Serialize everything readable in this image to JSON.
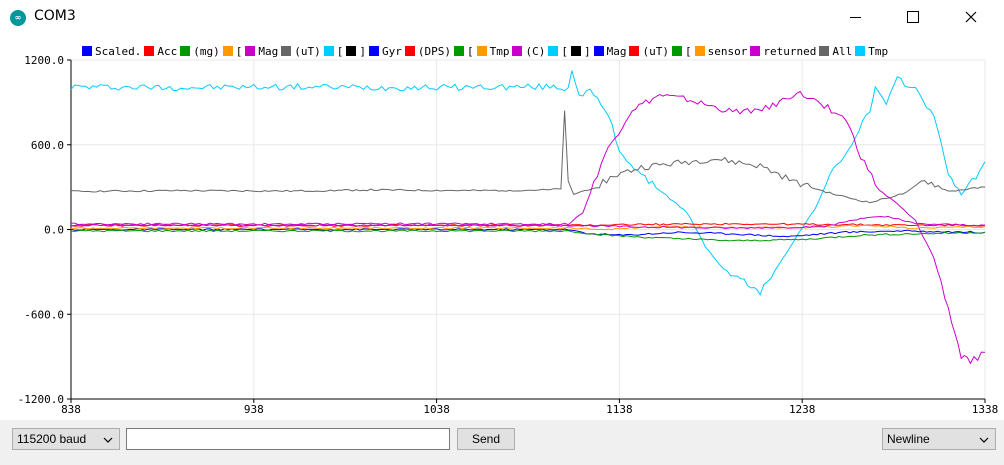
{
  "window": {
    "title": "COM3",
    "app_icon_glyph": "∞",
    "icon": "arduino-infinity-icon"
  },
  "controls": {
    "minimize": "minimize-icon",
    "maximize": "maximize-icon",
    "close": "close-icon"
  },
  "legend": [
    {
      "label": "Scaled.",
      "color": "#0000ff"
    },
    {
      "label": "Acc",
      "color": "#ff0000"
    },
    {
      "label": "(mg)",
      "color": "#009900"
    },
    {
      "label": "[",
      "color": "#ff9900"
    },
    {
      "label": "Mag",
      "color": "#cc00cc"
    },
    {
      "label": "(uT)",
      "color": "#666666"
    },
    {
      "label": "[",
      "color": "#00ccff"
    },
    {
      "label": "]",
      "color": "#000000"
    },
    {
      "label": "Gyr",
      "color": "#0000ff"
    },
    {
      "label": "(DPS)",
      "color": "#ff0000"
    },
    {
      "label": "[",
      "color": "#009900"
    },
    {
      "label": "Tmp",
      "color": "#ff9900"
    },
    {
      "label": "(C)",
      "color": "#cc00cc"
    },
    {
      "label": "[",
      "color": "#00ccff"
    },
    {
      "label": "]",
      "color": "#000000"
    },
    {
      "label": "Mag",
      "color": "#0000ff"
    },
    {
      "label": "(uT)",
      "color": "#ff0000"
    },
    {
      "label": "[",
      "color": "#009900"
    },
    {
      "label": "sensor",
      "color": "#ff9900"
    },
    {
      "label": "returned",
      "color": "#cc00cc"
    },
    {
      "label": "All",
      "color": "#666666"
    },
    {
      "label": "Tmp",
      "color": "#00ccff"
    }
  ],
  "chart_data": {
    "type": "line",
    "title": "",
    "xlabel": "",
    "ylabel": "",
    "xlim": [
      838,
      1338
    ],
    "ylim": [
      -1200,
      1200
    ],
    "x_ticks": [
      "838",
      "938",
      "1038",
      "1138",
      "1238",
      "1338"
    ],
    "y_ticks": [
      "1200.0",
      "600.0",
      "0.0",
      "-600.0",
      "-1200.0"
    ],
    "grid": true,
    "legend_position": "top",
    "series": [
      {
        "name": "[",
        "color": "#00ccff",
        "points": [
          [
            838,
            1010
          ],
          [
            900,
            1005
          ],
          [
            960,
            1010
          ],
          [
            1010,
            1005
          ],
          [
            1100,
            1010
          ],
          [
            1110,
            1000
          ],
          [
            1112,
            1130
          ],
          [
            1116,
            960
          ],
          [
            1122,
            980
          ],
          [
            1132,
            810
          ],
          [
            1138,
            560
          ],
          [
            1150,
            380
          ],
          [
            1160,
            280
          ],
          [
            1175,
            120
          ],
          [
            1185,
            -120
          ],
          [
            1195,
            -280
          ],
          [
            1210,
            -400
          ],
          [
            1215,
            -450
          ],
          [
            1225,
            -250
          ],
          [
            1235,
            -50
          ],
          [
            1245,
            150
          ],
          [
            1255,
            420
          ],
          [
            1265,
            600
          ],
          [
            1275,
            850
          ],
          [
            1278,
            1000
          ],
          [
            1284,
            880
          ],
          [
            1290,
            1060
          ],
          [
            1300,
            1000
          ],
          [
            1310,
            800
          ],
          [
            1318,
            400
          ],
          [
            1325,
            250
          ],
          [
            1335,
            400
          ],
          [
            1338,
            480
          ]
        ]
      },
      {
        "name": "(uT)",
        "color": "#666666",
        "points": [
          [
            838,
            270
          ],
          [
            900,
            275
          ],
          [
            960,
            272
          ],
          [
            1000,
            280
          ],
          [
            1060,
            275
          ],
          [
            1100,
            280
          ],
          [
            1106,
            290
          ],
          [
            1108,
            820
          ],
          [
            1110,
            330
          ],
          [
            1113,
            250
          ],
          [
            1125,
            300
          ],
          [
            1135,
            380
          ],
          [
            1150,
            440
          ],
          [
            1170,
            470
          ],
          [
            1190,
            500
          ],
          [
            1215,
            450
          ],
          [
            1235,
            330
          ],
          [
            1255,
            250
          ],
          [
            1275,
            190
          ],
          [
            1295,
            260
          ],
          [
            1305,
            350
          ],
          [
            1318,
            270
          ],
          [
            1338,
            300
          ]
        ]
      },
      {
        "name": "Mag",
        "color": "#cc00cc",
        "points": [
          [
            838,
            40
          ],
          [
            900,
            40
          ],
          [
            960,
            38
          ],
          [
            1000,
            42
          ],
          [
            1060,
            40
          ],
          [
            1100,
            38
          ],
          [
            1110,
            40
          ],
          [
            1118,
            120
          ],
          [
            1130,
            530
          ],
          [
            1145,
            850
          ],
          [
            1160,
            950
          ],
          [
            1175,
            920
          ],
          [
            1200,
            830
          ],
          [
            1220,
            860
          ],
          [
            1235,
            970
          ],
          [
            1250,
            880
          ],
          [
            1262,
            780
          ],
          [
            1270,
            520
          ],
          [
            1280,
            280
          ],
          [
            1290,
            180
          ],
          [
            1300,
            60
          ],
          [
            1310,
            -200
          ],
          [
            1318,
            -560
          ],
          [
            1325,
            -900
          ],
          [
            1330,
            -940
          ],
          [
            1338,
            -870
          ]
        ]
      },
      {
        "name": "Mag",
        "color": "#0000ff",
        "points": [
          [
            838,
            0
          ],
          [
            900,
            0
          ],
          [
            960,
            0
          ],
          [
            1060,
            0
          ],
          [
            1110,
            0
          ],
          [
            1120,
            -30
          ],
          [
            1140,
            -40
          ],
          [
            1170,
            -20
          ],
          [
            1200,
            -30
          ],
          [
            1230,
            -50
          ],
          [
            1260,
            -20
          ],
          [
            1290,
            -10
          ],
          [
            1338,
            -20
          ]
        ]
      },
      {
        "name": "Acc",
        "color": "#ff0000",
        "points": [
          [
            838,
            28
          ],
          [
            960,
            28
          ],
          [
            1060,
            28
          ],
          [
            1110,
            28
          ],
          [
            1140,
            35
          ],
          [
            1200,
            40
          ],
          [
            1260,
            35
          ],
          [
            1300,
            30
          ],
          [
            1338,
            30
          ]
        ]
      },
      {
        "name": "(mg)",
        "color": "#009900",
        "points": [
          [
            838,
            -10
          ],
          [
            960,
            -10
          ],
          [
            1060,
            -10
          ],
          [
            1110,
            -10
          ],
          [
            1130,
            -40
          ],
          [
            1160,
            -60
          ],
          [
            1200,
            -80
          ],
          [
            1240,
            -70
          ],
          [
            1270,
            -40
          ],
          [
            1300,
            -30
          ],
          [
            1338,
            -20
          ]
        ]
      },
      {
        "name": "Tmp",
        "color": "#ff9900",
        "points": [
          [
            838,
            10
          ],
          [
            960,
            10
          ],
          [
            1060,
            10
          ],
          [
            1110,
            10
          ],
          [
            1130,
            0
          ],
          [
            1160,
            20
          ],
          [
            1200,
            15
          ],
          [
            1240,
            10
          ],
          [
            1270,
            30
          ],
          [
            1300,
            10
          ],
          [
            1338,
            20
          ]
        ]
      },
      {
        "name": "(C)",
        "color": "#cc00cc",
        "points": [
          [
            838,
            30
          ],
          [
            960,
            30
          ],
          [
            1060,
            30
          ],
          [
            1110,
            30
          ],
          [
            1140,
            20
          ],
          [
            1200,
            10
          ],
          [
            1250,
            20
          ],
          [
            1270,
            80
          ],
          [
            1285,
            90
          ],
          [
            1300,
            40
          ],
          [
            1338,
            30
          ]
        ]
      }
    ]
  },
  "footer": {
    "baud": "115200 baud",
    "send_label": "Send",
    "line_ending": "Newline",
    "input_value": ""
  }
}
